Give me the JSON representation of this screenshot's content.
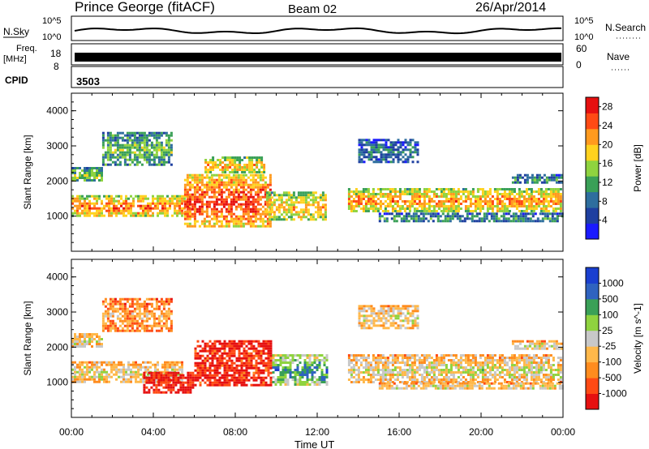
{
  "header": {
    "station": "Prince George (fitACF)",
    "beam": "Beam 02",
    "date": "26/Apr/2014"
  },
  "labels": {
    "nsky": "N.Sky",
    "nsky_hi": "10^5",
    "nsky_lo": "10^0",
    "nsearch": "N.Search",
    "nsearch_hi": "10^5",
    "nsearch_lo": "10^0",
    "freq": "Freq.",
    "freq_unit": "[MHz]",
    "freq_hi": "18",
    "freq_lo": "8",
    "nave": "Nave",
    "nave_hi": "60",
    "nave_lo": "0",
    "cpid": "CPID",
    "cpid_value": "3503",
    "xlabel": "Time UT"
  },
  "colors": {
    "power": [
      "#1a1aff",
      "#1e3fa0",
      "#2e6e9e",
      "#3aa057",
      "#8fd33f",
      "#ffd21e",
      "#ff9a1e",
      "#ff4a14",
      "#e61010"
    ],
    "velocity": [
      "#e61010",
      "#ff4a14",
      "#ff8c1e",
      "#ffb84a",
      "#c8c8c8",
      "#8fd33f",
      "#3aa057",
      "#2f63c0",
      "#1a3fd0"
    ]
  },
  "chart_data": [
    {
      "type": "heatmap",
      "title": "",
      "xlabel": "Time UT",
      "ylabel": "Slant Range [km]",
      "xlim": [
        "00:00",
        "24:00"
      ],
      "ylim": [
        0,
        4500
      ],
      "xticks": [
        "00:00",
        "04:00",
        "08:00",
        "12:00",
        "16:00",
        "20:00",
        "00:00"
      ],
      "yticks": [
        1000,
        2000,
        3000,
        4000
      ],
      "colorbar": {
        "label": "Power [dB]",
        "ticks": [
          4,
          8,
          12,
          16,
          20,
          24,
          28
        ],
        "range": [
          0,
          30
        ]
      },
      "bands": [
        {
          "t0": 0.0,
          "t1": 5.8,
          "r0": 1000,
          "r1": 1600,
          "level": 0.7
        },
        {
          "t0": 0.0,
          "t1": 1.5,
          "r0": 2000,
          "r1": 2400,
          "level": 0.45
        },
        {
          "t0": 1.5,
          "t1": 5.0,
          "r0": 2400,
          "r1": 3400,
          "level": 0.4
        },
        {
          "t0": 5.5,
          "t1": 9.8,
          "r0": 700,
          "r1": 2200,
          "level": 0.8
        },
        {
          "t0": 6.5,
          "t1": 9.5,
          "r0": 2200,
          "r1": 2700,
          "level": 0.6
        },
        {
          "t0": 9.5,
          "t1": 12.5,
          "r0": 900,
          "r1": 1700,
          "level": 0.6
        },
        {
          "t0": 13.5,
          "t1": 24.0,
          "r0": 1100,
          "r1": 1800,
          "level": 0.65
        },
        {
          "t0": 15.0,
          "t1": 24.0,
          "r0": 800,
          "r1": 1100,
          "level": 0.3
        },
        {
          "t0": 14.0,
          "t1": 17.0,
          "r0": 2500,
          "r1": 3200,
          "level": 0.25
        },
        {
          "t0": 21.5,
          "t1": 24.0,
          "r0": 1900,
          "r1": 2200,
          "level": 0.3
        }
      ]
    },
    {
      "type": "heatmap",
      "title": "",
      "xlabel": "Time UT",
      "ylabel": "Slant Range [km]",
      "xlim": [
        "00:00",
        "24:00"
      ],
      "ylim": [
        0,
        4500
      ],
      "xticks": [
        "00:00",
        "04:00",
        "08:00",
        "12:00",
        "16:00",
        "20:00",
        "00:00"
      ],
      "yticks": [
        1000,
        2000,
        3000,
        4000
      ],
      "colorbar": {
        "label": "Velocity [m s^-1]",
        "ticks": [
          1000,
          500,
          100,
          25,
          -25,
          -100,
          -500,
          -1000
        ]
      },
      "bands": [
        {
          "t0": 0.0,
          "t1": 5.5,
          "r0": 1000,
          "r1": 1600,
          "level": 0.45
        },
        {
          "t0": 0.0,
          "t1": 1.5,
          "r0": 2000,
          "r1": 2400,
          "level": 0.45
        },
        {
          "t0": 1.5,
          "t1": 5.0,
          "r0": 2400,
          "r1": 3400,
          "level": 0.3
        },
        {
          "t0": 3.5,
          "t1": 6.0,
          "r0": 700,
          "r1": 1300,
          "level": 0.05
        },
        {
          "t0": 6.0,
          "t1": 9.8,
          "r0": 900,
          "r1": 2200,
          "level": 0.1
        },
        {
          "t0": 9.8,
          "t1": 12.5,
          "r0": 900,
          "r1": 1800,
          "level": 0.7
        },
        {
          "t0": 13.5,
          "t1": 24.0,
          "r0": 1000,
          "r1": 1800,
          "level": 0.45
        },
        {
          "t0": 15.0,
          "t1": 24.0,
          "r0": 800,
          "r1": 1000,
          "level": 0.45
        },
        {
          "t0": 14.0,
          "t1": 17.0,
          "r0": 2500,
          "r1": 3200,
          "level": 0.45
        },
        {
          "t0": 21.5,
          "t1": 24.0,
          "r0": 1900,
          "r1": 2200,
          "level": 0.45
        }
      ]
    }
  ]
}
